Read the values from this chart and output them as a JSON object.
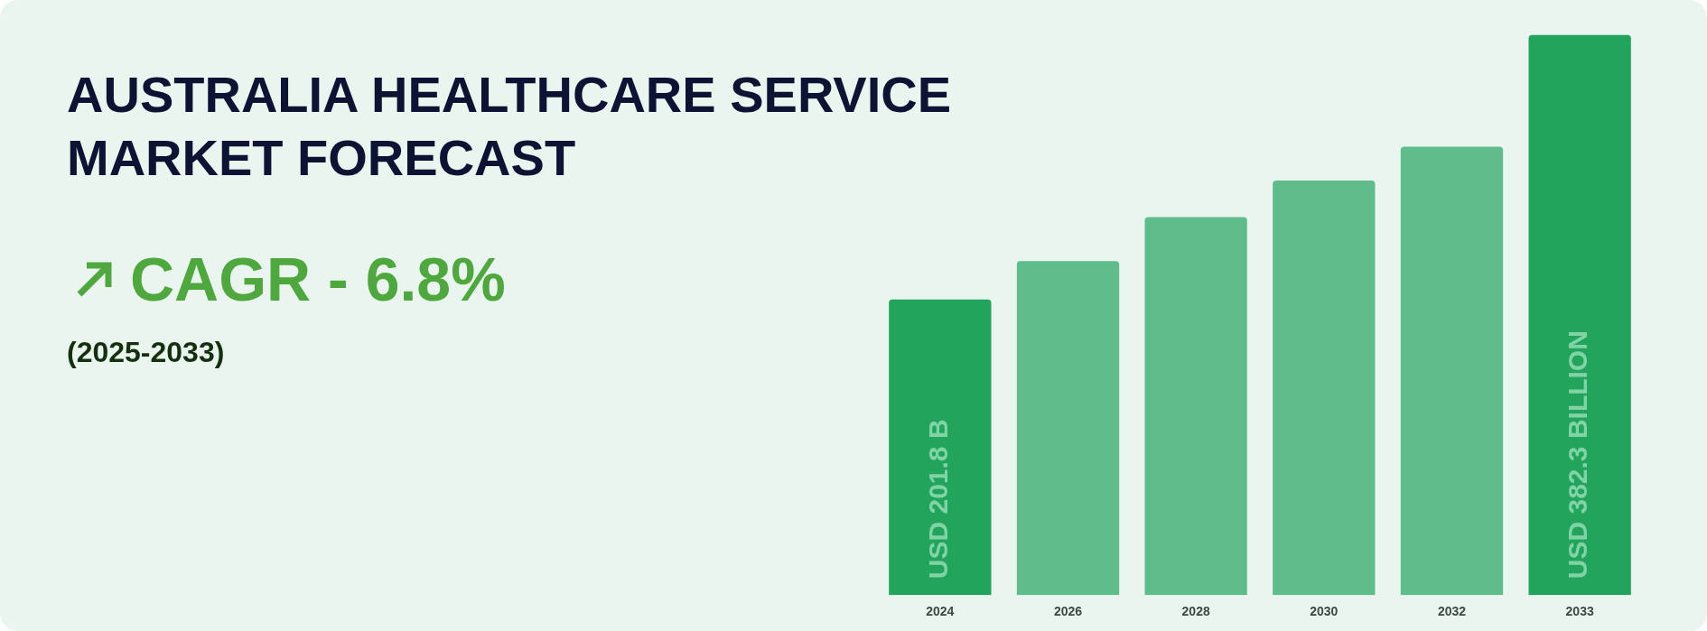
{
  "chart_data": {
    "type": "bar",
    "title": "AUSTRALIA HEALTHCARE SERVICE MARKET FORECAST",
    "annotations": [
      "CAGR - 6.8%",
      "(2025-2033)"
    ],
    "categories": [
      "2024",
      "2026",
      "2028",
      "2030",
      "2032",
      "2033"
    ],
    "values": [
      201.8,
      228,
      258,
      283,
      306,
      382.3
    ],
    "colors": [
      "#22a45d",
      "#5fbd8c",
      "#5fbd8c",
      "#5fbd8c",
      "#5fbd8c",
      "#22a45d"
    ],
    "value_labels": [
      "USD 201.8 B",
      null,
      null,
      null,
      null,
      "USD 382.3 BILLION"
    ],
    "tick_labels": "x",
    "grid": false,
    "legend": false
  }
}
